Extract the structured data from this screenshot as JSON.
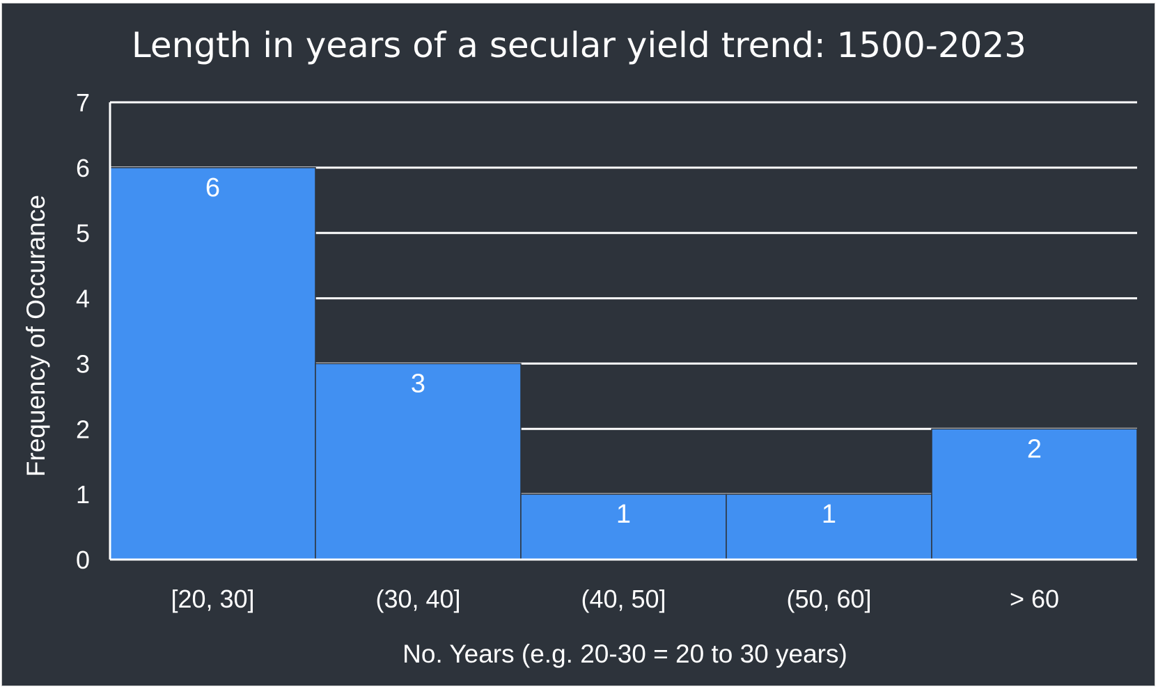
{
  "chart_data": {
    "type": "bar",
    "title": "Length in years of a secular yield trend: 1500-2023",
    "xlabel": "No. Years (e.g. 20-30 = 20 to 30 years)",
    "ylabel": "Frequency of Occurance",
    "categories": [
      "[20, 30]",
      "(30, 40]",
      "(40, 50]",
      "(50, 60]",
      "> 60"
    ],
    "values": [
      6,
      3,
      1,
      1,
      2
    ],
    "ylim": [
      0,
      7
    ],
    "yticks": [
      "0",
      "1",
      "2",
      "3",
      "4",
      "5",
      "6",
      "7"
    ],
    "data_labels": [
      "6",
      "3",
      "1",
      "1",
      "2"
    ],
    "grid": true,
    "legend": "none",
    "colors": {
      "background": "#2d333b",
      "bar": "#4190f2",
      "bar_edge": "#2d333b",
      "grid": "#ffffff",
      "text": "#ffffff"
    }
  }
}
